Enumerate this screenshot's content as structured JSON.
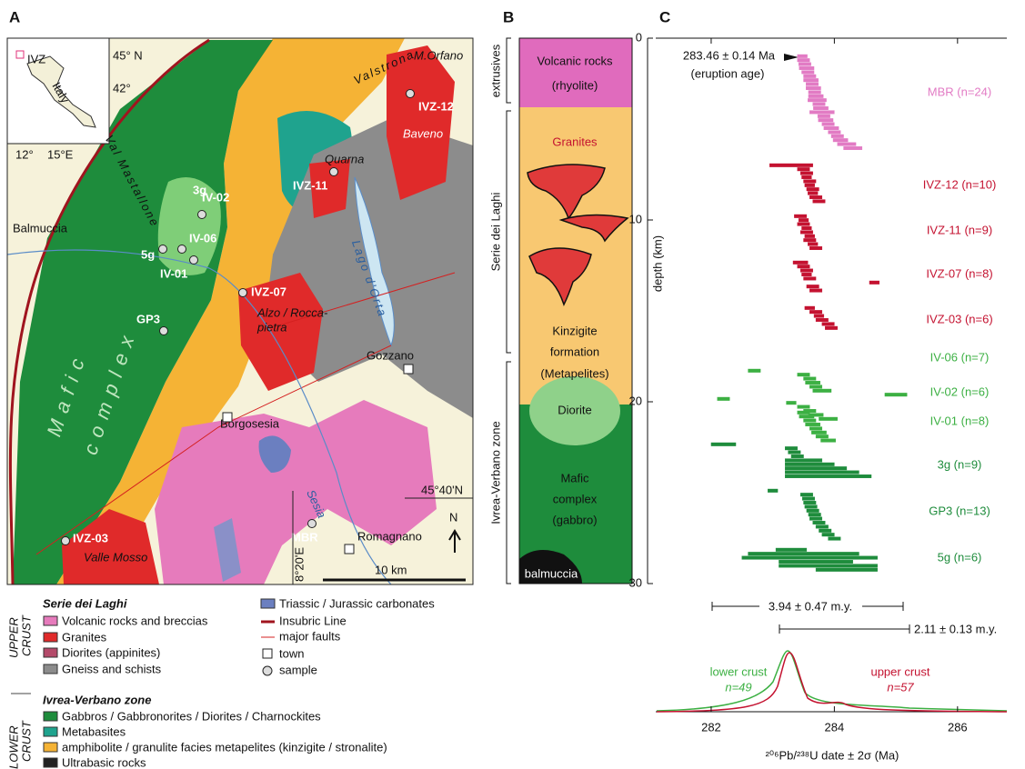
{
  "panels": {
    "a": "A",
    "b": "B",
    "c": "C"
  },
  "map": {
    "inset": {
      "lat1": "45° N",
      "lat2": "42°",
      "lon1": "12°",
      "lon2": "15°E",
      "ivz": "IVZ",
      "country": "Italy"
    },
    "places": {
      "valstrona": "Valstrona",
      "mastallone": "Val Mastallone",
      "orfano": "M.Orfano",
      "baveno": "Baveno",
      "quarna": "Quarna",
      "balmuccia": "Balmuccia",
      "alzo": [
        "Alzo / Rocca-",
        "pietra"
      ],
      "orta": "Lago d'Orta",
      "gozzano": "Gozzano",
      "mafic": [
        "Mafic",
        "complex"
      ],
      "borgosesia": "Borgosesia",
      "sesia": "Sesia",
      "romagnano": "Romagnano",
      "vallemosso": "Valle Mosso"
    },
    "samples": {
      "ivz12": "IVZ-12",
      "ivz11": "IVZ-11",
      "g3": "3g",
      "iv02": "IV-02",
      "iv06": "IV-06",
      "g5": "5g",
      "iv01": "IV-01",
      "ivz07": "IVZ-07",
      "gp3": "GP3",
      "mbr": "MBR",
      "ivz03": "IVZ-03"
    },
    "lat": "45°40'N",
    "lon": "8°20'E",
    "north": "N",
    "scale": "10 km"
  },
  "legend": {
    "serie": "Serie dei Laghi",
    "upper": [
      "UPPER",
      "CRUST"
    ],
    "upper_items": [
      "Volcanic rocks and breccias",
      "Granites",
      "Diorites (appinites)",
      "Gneiss and schists"
    ],
    "ivz": "Ivrea-Verbano zone",
    "lower": [
      "LOWER",
      "CRUST"
    ],
    "lower_items": [
      "Gabbros / Gabbronorites / Diorites / Charnockites",
      "Metabasites",
      "amphibolite / granulite facies metapelites (kinzigite / stronalite)",
      "Ultrabasic rocks"
    ],
    "other_items": [
      "Triassic / Jurassic carbonates",
      "Insubric Line",
      "major faults",
      "town",
      "sample"
    ]
  },
  "column": {
    "zones": [
      "extrusives",
      "Serie dei Laghi",
      "Ivrea-Verbano zone"
    ],
    "volcanic": [
      "Volcanic rocks",
      "(rhyolite)"
    ],
    "granites": "Granites",
    "kinzigite": [
      "Kinzigite",
      "formation",
      "(Metapelites)"
    ],
    "diorite": "Diorite",
    "mafic": [
      "Mafic",
      "complex",
      "(gabbro)"
    ],
    "balmuccia": "balmuccia",
    "depth_label": "depth (km)",
    "depth_lim": [
      0,
      30
    ],
    "depth_ticks": [
      0,
      10,
      20,
      30
    ]
  },
  "chart_data": {
    "type": "errorbar",
    "xlabel": "²⁰⁶Pb/²³⁸U date ± 2σ (Ma)",
    "xlim": [
      281.1,
      286.8
    ],
    "xticks": [
      282,
      284,
      286
    ],
    "eruption": [
      "283.46 ± 0.14 Ma",
      "(eruption age)"
    ],
    "spans": [
      "3.94 ± 0.47 m.y.",
      "2.11 ± 0.13 m.y."
    ],
    "density": [
      {
        "name": "lower crust",
        "n": "n=49",
        "color": "#3cb043"
      },
      {
        "name": "upper crust",
        "n": "n=57",
        "color": "#c41230"
      }
    ],
    "series": [
      {
        "name": "MBR (n=24)",
        "color": "#e27bc4",
        "values": [
          283.48,
          283.5,
          283.52,
          283.55,
          283.57,
          283.6,
          283.62,
          283.64,
          283.66,
          283.68,
          283.7,
          283.72,
          283.75,
          283.78,
          283.8,
          283.83,
          283.86,
          283.9,
          283.95,
          284.0,
          284.05,
          284.1,
          284.2,
          284.3
        ],
        "errors": [
          0.08,
          0.1,
          0.1,
          0.12,
          0.1,
          0.1,
          0.12,
          0.1,
          0.12,
          0.1,
          0.12,
          0.15,
          0.1,
          0.12,
          0.2,
          0.1,
          0.12,
          0.1,
          0.12,
          0.1,
          0.1,
          0.12,
          0.15,
          0.15
        ]
      },
      {
        "name": "IVZ-12 (n=10)",
        "color": "#c41230",
        "values": [
          283.3,
          283.5,
          283.55,
          283.55,
          283.6,
          283.6,
          283.65,
          283.65,
          283.7,
          283.75
        ],
        "errors": [
          0.35,
          0.1,
          0.1,
          0.08,
          0.1,
          0.08,
          0.1,
          0.08,
          0.1,
          0.1
        ]
      },
      {
        "name": "IVZ-11 (n=9)",
        "color": "#c41230",
        "values": [
          283.45,
          283.5,
          283.5,
          283.55,
          283.55,
          283.6,
          283.6,
          283.65,
          283.7
        ],
        "errors": [
          0.1,
          0.08,
          0.1,
          0.08,
          0.1,
          0.08,
          0.1,
          0.08,
          0.1
        ]
      },
      {
        "name": "IVZ-07 (n=8)",
        "color": "#c41230",
        "values": [
          283.45,
          283.5,
          283.55,
          283.55,
          283.6,
          284.65,
          283.65,
          283.7
        ],
        "errors": [
          0.12,
          0.1,
          0.1,
          0.08,
          0.1,
          0.08,
          0.1,
          0.1
        ]
      },
      {
        "name": "IVZ-03 (n=6)",
        "color": "#c41230",
        "values": [
          283.6,
          283.7,
          283.75,
          283.8,
          283.9,
          283.95
        ],
        "errors": [
          0.08,
          0.1,
          0.08,
          0.1,
          0.1,
          0.1
        ]
      },
      {
        "name": "IV-06 (n=7)",
        "color": "#3cb043",
        "values": [
          282.7,
          283.5,
          283.6,
          283.65,
          283.7,
          283.8,
          285.0
        ],
        "errors": [
          0.1,
          0.1,
          0.1,
          0.12,
          0.1,
          0.15,
          0.18
        ]
      },
      {
        "name": "IV-02 (n=6)",
        "color": "#3cb043",
        "values": [
          282.2,
          283.3,
          283.5,
          283.6,
          283.7,
          283.9
        ],
        "errors": [
          0.1,
          0.08,
          0.1,
          0.1,
          0.12,
          0.15
        ]
      },
      {
        "name": "IV-01 (n=8)",
        "color": "#3cb043",
        "values": [
          283.5,
          283.55,
          283.6,
          283.65,
          283.7,
          283.75,
          283.8,
          283.9
        ],
        "errors": [
          0.1,
          0.12,
          0.1,
          0.12,
          0.1,
          0.12,
          0.1,
          0.12
        ]
      },
      {
        "name": "3g (n=9)",
        "color": "#1e8c3c",
        "values": [
          282.2,
          283.3,
          283.35,
          283.4,
          283.5,
          283.6,
          283.7,
          283.8,
          283.9
        ],
        "errors": [
          0.2,
          0.1,
          0.1,
          0.1,
          0.3,
          0.4,
          0.5,
          0.6,
          0.7
        ]
      },
      {
        "name": "GP3 (n=13)",
        "color": "#1e8c3c",
        "values": [
          283.0,
          283.55,
          283.58,
          283.6,
          283.62,
          283.65,
          283.68,
          283.7,
          283.75,
          283.8,
          283.85,
          283.9,
          284.0
        ],
        "errors": [
          0.08,
          0.1,
          0.1,
          0.1,
          0.1,
          0.1,
          0.1,
          0.1,
          0.1,
          0.1,
          0.1,
          0.1,
          0.1
        ]
      },
      {
        "name": "5g (n=6)",
        "color": "#1e8c3c",
        "values": [
          283.3,
          283.5,
          283.6,
          283.7,
          283.9,
          284.2
        ],
        "errors": [
          0.25,
          0.9,
          1.1,
          0.6,
          0.8,
          0.5
        ]
      }
    ]
  }
}
